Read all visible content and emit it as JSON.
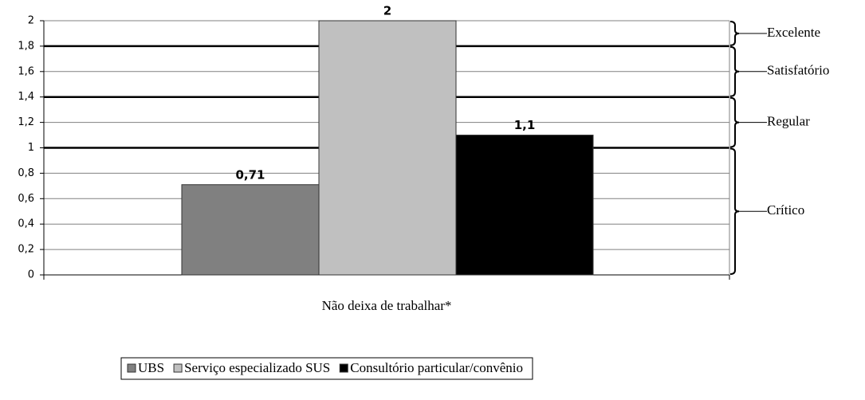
{
  "chart_data": {
    "type": "bar",
    "categories": [
      "Não deixa de trabalhar*"
    ],
    "series": [
      {
        "name": "UBS",
        "color": "#808080",
        "values": [
          0.71
        ],
        "value_labels": [
          "0,71"
        ]
      },
      {
        "name": "Serviço especializado SUS",
        "color": "#c0c0c0",
        "values": [
          2
        ],
        "value_labels": [
          "2"
        ]
      },
      {
        "name": "Consultório particular/convênio",
        "color": "#000000",
        "values": [
          1.1
        ],
        "value_labels": [
          "1,1"
        ]
      }
    ],
    "ylim": [
      0,
      2
    ],
    "yticks": [
      0,
      {
        "value": 0.2,
        "label": "0,2"
      },
      {
        "value": 0.4,
        "label": "0,4"
      },
      {
        "value": 0.6,
        "label": "0,6"
      },
      {
        "value": 0.8,
        "label": "0,8"
      },
      1,
      {
        "value": 1.2,
        "label": "1,2"
      },
      {
        "value": 1.4,
        "label": "1,4"
      },
      {
        "value": 1.6,
        "label": "1,6"
      },
      {
        "value": 1.8,
        "label": "1,8"
      },
      2
    ],
    "grid": true,
    "zones": [
      {
        "name": "Excelente",
        "range": [
          1.8,
          2
        ]
      },
      {
        "name": "Satisfatório",
        "range": [
          1.4,
          1.8
        ]
      },
      {
        "name": "Regular",
        "range": [
          1,
          1.4
        ]
      },
      {
        "name": "Crítico",
        "range": [
          0,
          1
        ]
      }
    ],
    "legend": "bottom"
  }
}
